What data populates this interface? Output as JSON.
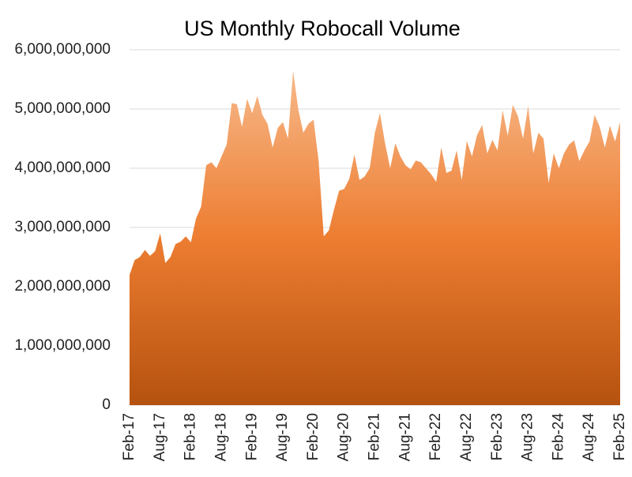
{
  "chart_data": {
    "type": "area",
    "title": "US Monthly Robocall Volume",
    "categories": [
      "Feb-17",
      null,
      null,
      null,
      null,
      null,
      "Aug-17",
      null,
      null,
      null,
      null,
      null,
      "Feb-18",
      null,
      null,
      null,
      null,
      null,
      "Aug-18",
      null,
      null,
      null,
      null,
      null,
      "Feb-19",
      null,
      null,
      null,
      null,
      null,
      "Aug-19",
      null,
      null,
      null,
      null,
      null,
      "Feb-20",
      null,
      null,
      null,
      null,
      null,
      "Aug-20",
      null,
      null,
      null,
      null,
      null,
      "Feb-21",
      null,
      null,
      null,
      null,
      null,
      "Aug-21",
      null,
      null,
      null,
      null,
      null,
      "Feb-22",
      null,
      null,
      null,
      null,
      null,
      "Aug-22",
      null,
      null,
      null,
      null,
      null,
      "Feb-23",
      null,
      null,
      null,
      null,
      null,
      "Aug-23",
      null,
      null,
      null,
      null,
      null,
      "Feb-24",
      null,
      null,
      null,
      null,
      null,
      "Aug-24",
      null,
      null,
      null,
      null,
      null,
      "Feb-25"
    ],
    "values": [
      2200000000,
      2450000000,
      2500000000,
      2620000000,
      2520000000,
      2600000000,
      2900000000,
      2400000000,
      2500000000,
      2720000000,
      2760000000,
      2850000000,
      2750000000,
      3150000000,
      3350000000,
      4050000000,
      4100000000,
      4000000000,
      4200000000,
      4400000000,
      5100000000,
      5080000000,
      4700000000,
      5170000000,
      4930000000,
      5220000000,
      4900000000,
      4750000000,
      4350000000,
      4680000000,
      4780000000,
      4500000000,
      5650000000,
      5000000000,
      4600000000,
      4750000000,
      4820000000,
      4120000000,
      2850000000,
      2950000000,
      3300000000,
      3620000000,
      3650000000,
      3820000000,
      4230000000,
      3800000000,
      3860000000,
      4000000000,
      4600000000,
      4930000000,
      4420000000,
      4000000000,
      4420000000,
      4200000000,
      4050000000,
      3980000000,
      4130000000,
      4100000000,
      4000000000,
      3900000000,
      3770000000,
      4350000000,
      3920000000,
      3960000000,
      4300000000,
      3800000000,
      4460000000,
      4200000000,
      4560000000,
      4730000000,
      4250000000,
      4480000000,
      4300000000,
      4980000000,
      4550000000,
      5070000000,
      4880000000,
      4500000000,
      5050000000,
      4250000000,
      4600000000,
      4500000000,
      3750000000,
      4250000000,
      4000000000,
      4250000000,
      4400000000,
      4470000000,
      4120000000,
      4300000000,
      4450000000,
      4900000000,
      4700000000,
      4350000000,
      4720000000,
      4450000000,
      4780000000
    ],
    "color": "#ed7d31",
    "ylim": [
      0,
      6000000000
    ],
    "yticks": [
      0,
      {
        "value": 1000000000,
        "label": "1,000,000,000"
      },
      {
        "value": 2000000000,
        "label": "2,000,000,000"
      },
      {
        "value": 3000000000,
        "label": "3,000,000,000"
      },
      {
        "value": 4000000000,
        "label": "4,000,000,000"
      },
      {
        "value": 5000000000,
        "label": "5,000,000,000"
      },
      {
        "value": 6000000000,
        "label": "6,000,000,000"
      }
    ],
    "grid": true
  }
}
